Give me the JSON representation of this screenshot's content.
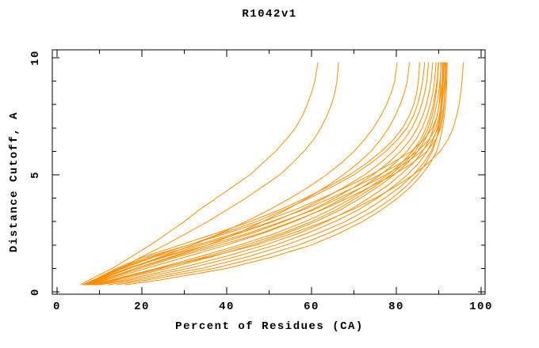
{
  "title": "R1042v1",
  "chart_data": {
    "type": "line",
    "title": "R1042v1",
    "xlabel": "Percent of Residues (CA)",
    "ylabel": "Distance Cutoff, A",
    "xlim": [
      0,
      100
    ],
    "ylim": [
      0,
      10
    ],
    "x_ticks": [
      0,
      20,
      40,
      60,
      80,
      100
    ],
    "x_minor_ticks": [
      10,
      30,
      50,
      70,
      90
    ],
    "y_ticks": [
      0,
      5,
      10
    ],
    "y_minor_ticks": [
      1,
      2,
      3,
      4,
      6,
      7,
      8,
      9
    ],
    "grid": false,
    "legend": false,
    "line_color": "#FF8C00",
    "cutoffs": [
      0.3,
      0.5,
      1,
      1.5,
      2,
      2.5,
      3,
      3.5,
      4,
      4.5,
      5,
      5.5,
      6,
      6.5,
      7,
      7.5,
      8,
      8.5,
      9,
      9.8
    ],
    "series": [
      {
        "percents": [
          5.5,
          7.5,
          13,
          17.5,
          22,
          26,
          30,
          33.5,
          37.5,
          41.5,
          45.5,
          48.5,
          51.5,
          54,
          56.2,
          57.8,
          59,
          60,
          60.8,
          61.5
        ]
      },
      {
        "percents": [
          6,
          8.5,
          15,
          20,
          25.5,
          30.5,
          35.5,
          40,
          44.5,
          48.5,
          52.5,
          55.5,
          58.2,
          60.5,
          62.2,
          63.6,
          64.7,
          65.5,
          66,
          66.4
        ]
      },
      {
        "percents": [
          7,
          10,
          17,
          24.5,
          32,
          38.5,
          44.5,
          50,
          55,
          59.5,
          63.5,
          67,
          70,
          72.5,
          74.6,
          76.3,
          77.7,
          78.8,
          79.6,
          80.2
        ]
      },
      {
        "percents": [
          7.5,
          11,
          18.5,
          27,
          35.5,
          42.5,
          48.5,
          54,
          59,
          63.5,
          67.5,
          71,
          74,
          76.3,
          78.2,
          79.7,
          80.9,
          81.9,
          82.6,
          83.1
        ]
      },
      {
        "percents": [
          6.5,
          9,
          15,
          22.5,
          31,
          39,
          47,
          53.5,
          59.5,
          65,
          70,
          74,
          77.5,
          80.3,
          82.5,
          84,
          85,
          85.7,
          86.2,
          86.7
        ]
      },
      {
        "percents": [
          6.8,
          9.5,
          16.5,
          25,
          34,
          43,
          51,
          57.5,
          63,
          68,
          72.5,
          76.2,
          79.3,
          81.8,
          83.7,
          85,
          86,
          86.7,
          87.2,
          87.6
        ]
      },
      {
        "percents": [
          7.2,
          10.5,
          18.5,
          27.5,
          37,
          46,
          53.5,
          60,
          65.5,
          70.3,
          74.5,
          78,
          81,
          83.3,
          85,
          86.2,
          87.1,
          87.7,
          88.2,
          88.6
        ]
      },
      {
        "percents": [
          7.6,
          11.5,
          21,
          30.5,
          40,
          48.5,
          56,
          62.2,
          67.5,
          72.2,
          76.3,
          79.7,
          82.5,
          84.6,
          86.1,
          87.2,
          88,
          88.6,
          89,
          89.4
        ]
      },
      {
        "percents": [
          8,
          12.5,
          23.5,
          33.5,
          43,
          51.5,
          58.5,
          64.5,
          69.5,
          74,
          78,
          81.2,
          83.8,
          85.7,
          87,
          88,
          88.7,
          89.2,
          89.6,
          90
        ]
      },
      {
        "percents": [
          8.5,
          14,
          26,
          36.5,
          46,
          54,
          61,
          66.8,
          71.5,
          75.8,
          79.5,
          82.6,
          85,
          86.8,
          88,
          88.9,
          89.5,
          90,
          90.3,
          90.6
        ]
      },
      {
        "percents": [
          9,
          15.5,
          28.5,
          39.5,
          49,
          57,
          63.5,
          69,
          73.5,
          77.6,
          81,
          84,
          86.2,
          87.8,
          88.8,
          89.6,
          90.1,
          90.5,
          90.8,
          91.1
        ]
      },
      {
        "percents": [
          10,
          17,
          31,
          42,
          51.5,
          59,
          65.5,
          71,
          75.5,
          79.3,
          82.6,
          85.3,
          87.3,
          88.7,
          89.7,
          90.3,
          90.8,
          91.1,
          91.4,
          91.6
        ]
      },
      {
        "percents": [
          12,
          19,
          34,
          45,
          54,
          61.5,
          68,
          73,
          77.3,
          81,
          84,
          86.4,
          88.2,
          89.4,
          90.2,
          90.8,
          91.2,
          91.5,
          91.7,
          91.8
        ]
      },
      {
        "percents": [
          14,
          21,
          37,
          48,
          57,
          64,
          70,
          75,
          79,
          82.3,
          85,
          87,
          88.5,
          89.4,
          90,
          90.4,
          90.7,
          90.9,
          91.1,
          91.3
        ]
      },
      {
        "percents": [
          16,
          24,
          40,
          51,
          60,
          66.5,
          72,
          76.5,
          80.3,
          83.5,
          86,
          88,
          89.5,
          90.3,
          90.9,
          91.3,
          91.6,
          91.8,
          91.9,
          92
        ]
      },
      {
        "percents": [
          6.3,
          8.8,
          14.5,
          21.5,
          31,
          40,
          48.5,
          56,
          62.5,
          68.5,
          74,
          79,
          83.5,
          86.5,
          88.5,
          89.6,
          90.1,
          90.3,
          90.4,
          90.5
        ]
      },
      {
        "percents": [
          6.6,
          9.2,
          15.5,
          23,
          33,
          42,
          50.5,
          58,
          64.5,
          70.5,
          76,
          81,
          85,
          87.7,
          89.3,
          90.1,
          90.5,
          90.7,
          90.8,
          90.9
        ]
      },
      {
        "percents": [
          7,
          9.8,
          17,
          25.5,
          35.5,
          45,
          53,
          60.5,
          66.5,
          72.3,
          77.5,
          82.2,
          86,
          88.5,
          89.9,
          90.5,
          90.8,
          90.9,
          91,
          91
        ]
      },
      {
        "percents": [
          7.4,
          10.8,
          19.5,
          28.5,
          38.5,
          48,
          55.5,
          62.5,
          68.5,
          74,
          79.3,
          83.8,
          87.2,
          89.3,
          90.5,
          91,
          91.3,
          91.4,
          91.5,
          91.5
        ]
      },
      {
        "percents": [
          6.2,
          8.6,
          14,
          20.5,
          29,
          37.5,
          45.5,
          52.5,
          58.5,
          64,
          69,
          73,
          76.5,
          79.3,
          81.5,
          83,
          84.1,
          84.8,
          85.2,
          85.5
        ]
      },
      {
        "percents": [
          9.5,
          13.2,
          24.5,
          35,
          44.5,
          53,
          60,
          65.8,
          70.5,
          74.9,
          78.7,
          81.9,
          84.4,
          86.2,
          87.5,
          88.4,
          89,
          89.4,
          89.7,
          89.9
        ]
      },
      {
        "percents": [
          8.8,
          12.8,
          24,
          36,
          47,
          55.5,
          63,
          69.5,
          75,
          79.8,
          84,
          87.5,
          90.3,
          92.2,
          93.4,
          94.2,
          94.8,
          95.2,
          95.5,
          95.8
        ]
      }
    ]
  }
}
